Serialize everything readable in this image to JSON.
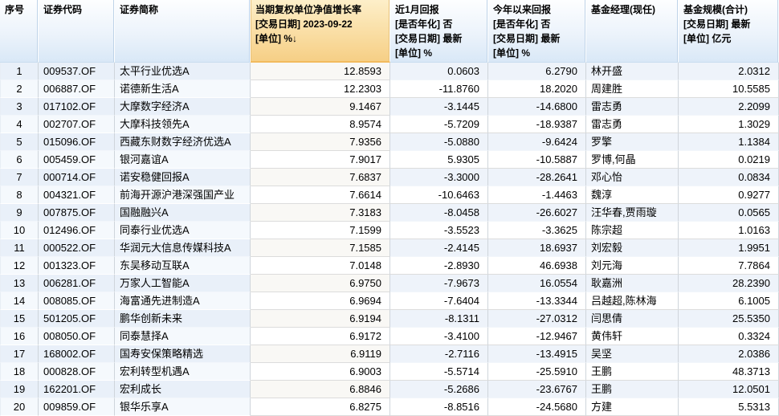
{
  "colors": {
    "header_blue_bottom": "#d9e8f7",
    "sorted_header_orange": "#f6cf86",
    "sorted_header_border": "#f2bb5e",
    "row_alt_blue": "#e9f0f9",
    "row_alt_plain": "#eef3fa",
    "grid_line": "#cfd5db",
    "text": "#000000"
  },
  "table": {
    "sort_arrow": "↓",
    "columns": [
      {
        "key": "no",
        "cls": "c-no c-blue",
        "label_lines": [
          "序号"
        ]
      },
      {
        "key": "code",
        "cls": "c-code c-blue",
        "label_lines": [
          "证券代码"
        ]
      },
      {
        "key": "name",
        "cls": "c-name c-blue",
        "label_lines": [
          "证券简称"
        ]
      },
      {
        "key": "cur",
        "cls": "c-num c-sorted",
        "sorted": true,
        "label_lines": [
          "当期复权单位净值增长率",
          "[交易日期] 2023-09-22",
          "[单位] %"
        ]
      },
      {
        "key": "m1",
        "cls": "c-num c-plain",
        "label_lines": [
          "近1月回报",
          "[是否年化] 否",
          "[交易日期] 最新",
          "[单位] %"
        ]
      },
      {
        "key": "ytd",
        "cls": "c-num c-plain",
        "label_lines": [
          "今年以来回报",
          "[是否年化] 否",
          "[交易日期] 最新",
          "[单位] %"
        ]
      },
      {
        "key": "mgr",
        "cls": "c-mgr c-plain",
        "label_lines": [
          "基金经理(现任)"
        ]
      },
      {
        "key": "scale",
        "cls": "c-num c-plain",
        "label_lines": [
          "基金规模(合计)",
          "[交易日期] 最新",
          "[单位] 亿元"
        ]
      }
    ],
    "rows": [
      {
        "no": "1",
        "code": "009537.OF",
        "name": "太平行业优选A",
        "cur": "12.8593",
        "m1": "0.0603",
        "ytd": "6.2790",
        "mgr": "林开盛",
        "scale": "2.0312"
      },
      {
        "no": "2",
        "code": "006887.OF",
        "name": "诺德新生活A",
        "cur": "12.2303",
        "m1": "-11.8760",
        "ytd": "18.2020",
        "mgr": "周建胜",
        "scale": "10.5585"
      },
      {
        "no": "3",
        "code": "017102.OF",
        "name": "大摩数字经济A",
        "cur": "9.1467",
        "m1": "-3.1445",
        "ytd": "-14.6800",
        "mgr": "雷志勇",
        "scale": "2.2099"
      },
      {
        "no": "4",
        "code": "002707.OF",
        "name": "大摩科技领先A",
        "cur": "8.9574",
        "m1": "-5.7209",
        "ytd": "-18.9387",
        "mgr": "雷志勇",
        "scale": "1.3029"
      },
      {
        "no": "5",
        "code": "015096.OF",
        "name": "西藏东财数字经济优选A",
        "cur": "7.9356",
        "m1": "-5.0880",
        "ytd": "-9.6424",
        "mgr": "罗擎",
        "scale": "1.1384"
      },
      {
        "no": "6",
        "code": "005459.OF",
        "name": "银河嘉谊A",
        "cur": "7.9017",
        "m1": "5.9305",
        "ytd": "-10.5887",
        "mgr": "罗博,何晶",
        "scale": "0.0219"
      },
      {
        "no": "7",
        "code": "000714.OF",
        "name": "诺安稳健回报A",
        "cur": "7.6837",
        "m1": "-3.3000",
        "ytd": "-28.2641",
        "mgr": "邓心怡",
        "scale": "0.0834"
      },
      {
        "no": "8",
        "code": "004321.OF",
        "name": "前海开源沪港深强国产业",
        "cur": "7.6614",
        "m1": "-10.6463",
        "ytd": "-1.4463",
        "mgr": "魏淳",
        "scale": "0.9277"
      },
      {
        "no": "9",
        "code": "007875.OF",
        "name": "国融融兴A",
        "cur": "7.3183",
        "m1": "-8.0458",
        "ytd": "-26.6027",
        "mgr": "汪华春,贾雨璇",
        "scale": "0.0565"
      },
      {
        "no": "10",
        "code": "012496.OF",
        "name": "同泰行业优选A",
        "cur": "7.1599",
        "m1": "-3.5523",
        "ytd": "-3.3625",
        "mgr": "陈宗超",
        "scale": "1.0163"
      },
      {
        "no": "11",
        "code": "000522.OF",
        "name": "华润元大信息传媒科技A",
        "cur": "7.1585",
        "m1": "-2.4145",
        "ytd": "18.6937",
        "mgr": "刘宏毅",
        "scale": "1.9951"
      },
      {
        "no": "12",
        "code": "001323.OF",
        "name": "东吴移动互联A",
        "cur": "7.0148",
        "m1": "-2.8930",
        "ytd": "46.6938",
        "mgr": "刘元海",
        "scale": "7.7864"
      },
      {
        "no": "13",
        "code": "006281.OF",
        "name": "万家人工智能A",
        "cur": "6.9750",
        "m1": "-7.9673",
        "ytd": "16.0554",
        "mgr": "耿嘉洲",
        "scale": "28.2390"
      },
      {
        "no": "14",
        "code": "008085.OF",
        "name": "海富通先进制造A",
        "cur": "6.9694",
        "m1": "-7.6404",
        "ytd": "-13.3344",
        "mgr": "吕越超,陈林海",
        "scale": "6.1005"
      },
      {
        "no": "15",
        "code": "501205.OF",
        "name": "鹏华创新未来",
        "cur": "6.9194",
        "m1": "-8.1311",
        "ytd": "-27.0312",
        "mgr": "闫思倩",
        "scale": "25.5350"
      },
      {
        "no": "16",
        "code": "008050.OF",
        "name": "同泰慧择A",
        "cur": "6.9172",
        "m1": "-3.4100",
        "ytd": "-12.9467",
        "mgr": "黄伟轩",
        "scale": "0.3324"
      },
      {
        "no": "17",
        "code": "168002.OF",
        "name": "国寿安保策略精选",
        "cur": "6.9119",
        "m1": "-2.7116",
        "ytd": "-13.4915",
        "mgr": "吴坚",
        "scale": "2.0386"
      },
      {
        "no": "18",
        "code": "000828.OF",
        "name": "宏利转型机遇A",
        "cur": "6.9003",
        "m1": "-5.5714",
        "ytd": "-25.5910",
        "mgr": "王鹏",
        "scale": "48.3713"
      },
      {
        "no": "19",
        "code": "162201.OF",
        "name": "宏利成长",
        "cur": "6.8846",
        "m1": "-5.2686",
        "ytd": "-23.6767",
        "mgr": "王鹏",
        "scale": "12.0501"
      },
      {
        "no": "20",
        "code": "009859.OF",
        "name": "银华乐享A",
        "cur": "6.8275",
        "m1": "-8.8516",
        "ytd": "-24.5680",
        "mgr": "方建",
        "scale": "5.5313"
      }
    ]
  }
}
